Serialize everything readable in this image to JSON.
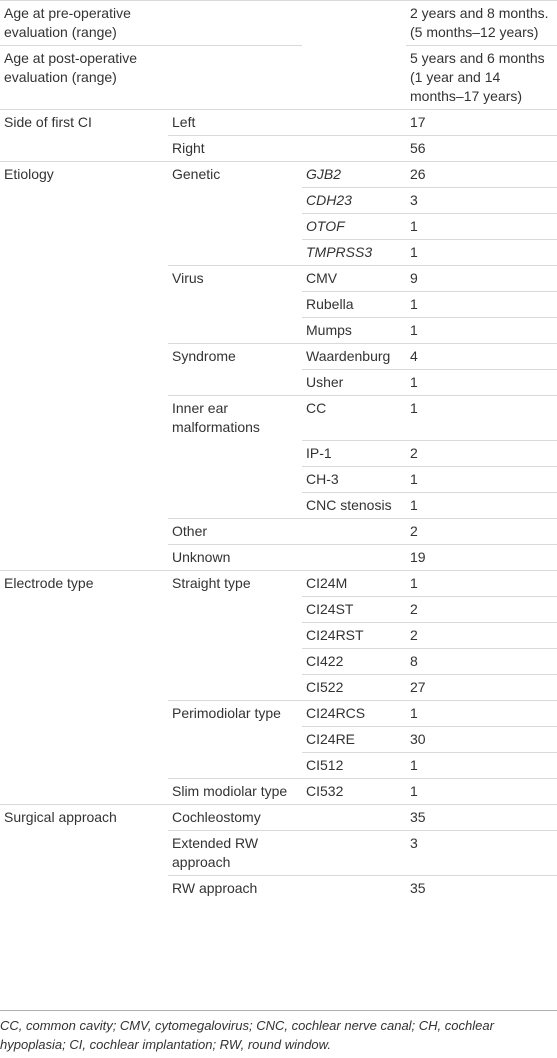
{
  "rows": [
    {
      "c1": "Age at pre-operative evaluation (range)",
      "c2": "",
      "c3": "",
      "c4": "2 years and 8 months. (5 months–12 years)"
    },
    {
      "c1": "Age at post-operative evaluation (range)",
      "c2": "",
      "c3": "",
      "c4": "5 years and 6 months (1 year and 14 months–17 years)"
    },
    {
      "c1": "Side of first CI",
      "c2": "Left",
      "c3": "",
      "c4": "17"
    },
    {
      "c1": "",
      "c2": "Right",
      "c3": "",
      "c4": "56"
    },
    {
      "c1": "Etiology",
      "c2": "Genetic",
      "c3": "GJB2",
      "c4": "26"
    },
    {
      "c1": "",
      "c2": "",
      "c3": "CDH23",
      "c4": "3"
    },
    {
      "c1": "",
      "c2": "",
      "c3": "OTOF",
      "c4": "1"
    },
    {
      "c1": "",
      "c2": "",
      "c3": "TMPRSS3",
      "c4": "1"
    },
    {
      "c1": "",
      "c2": "Virus",
      "c3": "CMV",
      "c4": "9"
    },
    {
      "c1": "",
      "c2": "",
      "c3": "Rubella",
      "c4": "1"
    },
    {
      "c1": "",
      "c2": "",
      "c3": "Mumps",
      "c4": "1"
    },
    {
      "c1": "",
      "c2": "Syndrome",
      "c3": "Waardenburg",
      "c4": "4"
    },
    {
      "c1": "",
      "c2": "",
      "c3": "Usher",
      "c4": "1"
    },
    {
      "c1": "",
      "c2": "Inner ear malformations",
      "c3": "CC",
      "c4": "1"
    },
    {
      "c1": "",
      "c2": "",
      "c3": "IP-1",
      "c4": "2"
    },
    {
      "c1": "",
      "c2": "",
      "c3": "CH-3",
      "c4": "1"
    },
    {
      "c1": "",
      "c2": "",
      "c3": "CNC stenosis",
      "c4": "1"
    },
    {
      "c1": "",
      "c2": "Other",
      "c3": "",
      "c4": "2"
    },
    {
      "c1": "",
      "c2": "Unknown",
      "c3": "",
      "c4": "19"
    },
    {
      "c1": "Electrode type",
      "c2": "Straight type",
      "c3": "CI24M",
      "c4": "1"
    },
    {
      "c1": "",
      "c2": "",
      "c3": "CI24ST",
      "c4": "2"
    },
    {
      "c1": "",
      "c2": "",
      "c3": "CI24RST",
      "c4": "2"
    },
    {
      "c1": "",
      "c2": "",
      "c3": "CI422",
      "c4": "8"
    },
    {
      "c1": "",
      "c2": "",
      "c3": "CI522",
      "c4": "27"
    },
    {
      "c1": "",
      "c2": "Perimodiolar type",
      "c3": "CI24RCS",
      "c4": "1"
    },
    {
      "c1": "",
      "c2": "",
      "c3": "CI24RE",
      "c4": "30"
    },
    {
      "c1": "",
      "c2": "",
      "c3": "CI512",
      "c4": "1"
    },
    {
      "c1": "",
      "c2": "Slim modiolar type",
      "c3": "CI532",
      "c4": "1"
    },
    {
      "c1": "Surgical approach",
      "c2": "Cochleostomy",
      "c3": "",
      "c4": "35"
    },
    {
      "c1": "",
      "c2": "Extended RW approach",
      "c3": "",
      "c4": "3"
    },
    {
      "c1": "",
      "c2": "RW approach",
      "c3": "",
      "c4": "35"
    }
  ],
  "footnote": "CC, common cavity; CMV, cytomegalovirus; CNC, cochlear nerve canal; CH, cochlear hypoplasia; CI, cochlear implantation; RW, round window."
}
